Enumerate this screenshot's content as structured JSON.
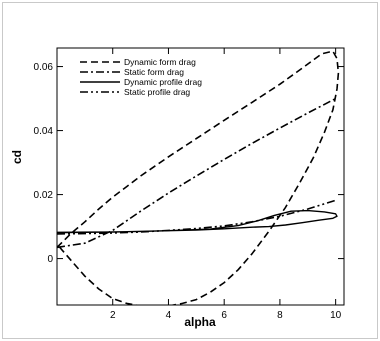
{
  "chart_data": {
    "type": "line",
    "xlabel": "alpha",
    "ylabel": "cd",
    "xlim": [
      0,
      10.3
    ],
    "ylim": [
      -0.0145,
      0.0658
    ],
    "xticks": [
      2,
      4,
      6,
      8,
      10
    ],
    "yticks": [
      0,
      0.02,
      0.04,
      0.06
    ],
    "grid": false,
    "legend_position": "top-left",
    "series": [
      {
        "name": "Dynamic form drag",
        "dash": "dashed",
        "x": [
          0.0,
          0.5,
          1.0,
          1.5,
          2.0,
          2.5,
          3.0,
          4.0,
          5.0,
          6.0,
          7.0,
          8.0,
          8.8,
          9.5,
          9.9,
          10.05,
          10.1,
          10.05,
          9.9,
          9.6,
          9.2,
          8.7,
          8.2,
          7.6,
          7.0,
          6.5,
          6.0,
          5.5,
          5.0,
          4.5,
          4.0,
          3.5,
          3.0,
          2.5,
          2.0,
          1.5,
          1.0,
          0.5,
          0.0
        ],
        "y": [
          0.0035,
          0.0078,
          0.0115,
          0.0155,
          0.0192,
          0.0225,
          0.0258,
          0.0318,
          0.0375,
          0.0432,
          0.0488,
          0.0545,
          0.0595,
          0.064,
          0.0648,
          0.0625,
          0.058,
          0.053,
          0.0465,
          0.0395,
          0.0315,
          0.0235,
          0.016,
          0.0085,
          0.0015,
          -0.0035,
          -0.0075,
          -0.0105,
          -0.0128,
          -0.014,
          -0.0148,
          -0.015,
          -0.0148,
          -0.014,
          -0.0125,
          -0.0095,
          -0.0055,
          -0.0005,
          0.0045
        ]
      },
      {
        "name": "Static form drag",
        "dash": "dashdot",
        "x": [
          0.0,
          1.0,
          2.0,
          3.0,
          4.0,
          5.0,
          6.0,
          7.0,
          8.0,
          9.0,
          10.0
        ],
        "y": [
          0.0035,
          0.0048,
          0.0088,
          0.0148,
          0.0205,
          0.0258,
          0.031,
          0.036,
          0.0408,
          0.0455,
          0.05
        ]
      },
      {
        "name": "Dynamic profile drag",
        "dash": "solid",
        "x": [
          0.0,
          2.0,
          4.0,
          5.5,
          6.5,
          7.2,
          7.8,
          8.4,
          9.0,
          9.6,
          10.0,
          10.05,
          9.9,
          9.4,
          8.8,
          8.2,
          7.6,
          7.0,
          6.0,
          5.0,
          4.0,
          3.0,
          2.0,
          1.0,
          0.0
        ],
        "y": [
          0.0082,
          0.0083,
          0.0087,
          0.0092,
          0.0103,
          0.0118,
          0.0135,
          0.0148,
          0.015,
          0.0146,
          0.014,
          0.0132,
          0.0126,
          0.012,
          0.0112,
          0.0105,
          0.01,
          0.0098,
          0.0093,
          0.0089,
          0.0087,
          0.0085,
          0.0083,
          0.0082,
          0.0081
        ]
      },
      {
        "name": "Static profile drag",
        "dash": "dashdotdot",
        "x": [
          0.0,
          1.0,
          2.0,
          3.0,
          4.0,
          5.0,
          6.0,
          7.0,
          8.0,
          9.0,
          10.0
        ],
        "y": [
          0.0077,
          0.0078,
          0.008,
          0.0083,
          0.0088,
          0.0094,
          0.0102,
          0.0115,
          0.0132,
          0.0155,
          0.0182
        ]
      }
    ]
  }
}
